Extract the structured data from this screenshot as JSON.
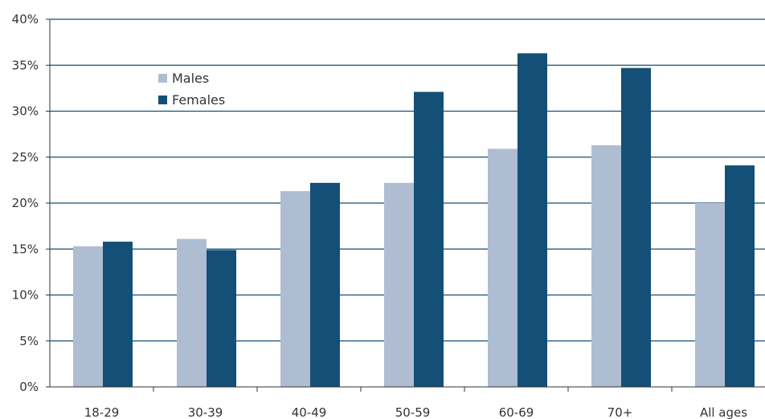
{
  "chart_data": {
    "type": "bar",
    "categories": [
      "18-29",
      "30-39",
      "40-49",
      "50-59",
      "60-69",
      "70+",
      "All ages"
    ],
    "series": [
      {
        "name": "Males",
        "values": [
          15.3,
          16.1,
          21.3,
          22.2,
          25.9,
          26.3,
          20.0
        ],
        "color": "#afbdd2"
      },
      {
        "name": "Females",
        "values": [
          15.8,
          14.9,
          22.2,
          32.1,
          36.3,
          34.7,
          24.1
        ],
        "color": "#134f76"
      }
    ],
    "yticks": [
      "0%",
      "5%",
      "10%",
      "15%",
      "20%",
      "25%",
      "30%",
      "35%",
      "40%"
    ],
    "ylim": [
      0,
      40
    ],
    "grid": true,
    "gridline_color": "#134f76",
    "legend_position": "top-left"
  }
}
